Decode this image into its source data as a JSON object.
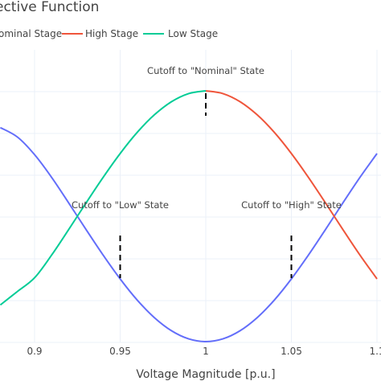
{
  "chart_data": {
    "type": "line",
    "title": "ective Function",
    "xlabel": "Voltage Magnitude [p.u.]",
    "xlim": [
      0.88,
      1.1
    ],
    "ylim": [
      0,
      1.02
    ],
    "x_ticks": [
      {
        "value": 0.9,
        "label": "0.9"
      },
      {
        "value": 0.95,
        "label": "0.95"
      },
      {
        "value": 1.0,
        "label": "1"
      },
      {
        "value": 1.05,
        "label": "1.05"
      },
      {
        "value": 1.1,
        "label": "1.1"
      }
    ],
    "legend_position": "top",
    "series": [
      {
        "name": "ominal Stage",
        "color": "#636efa",
        "x": [
          0.88,
          0.89,
          0.9,
          0.91,
          0.92,
          0.93,
          0.94,
          0.95,
          0.96,
          0.97,
          0.98,
          0.99,
          1.0,
          1.01,
          1.02,
          1.03,
          1.04,
          1.05,
          1.06,
          1.07,
          1.08,
          1.09,
          1.1
        ],
        "y": [
          0.8535,
          0.8156,
          0.7456,
          0.6545,
          0.5523,
          0.4477,
          0.3454,
          0.25,
          0.1654,
          0.0955,
          0.0434,
          0.011,
          0.0,
          0.011,
          0.0434,
          0.0955,
          0.1654,
          0.25,
          0.3454,
          0.4477,
          0.5523,
          0.6545,
          0.75
        ]
      },
      {
        "name": "High Stage",
        "color": "#ef553b",
        "x": [
          1.0,
          1.01,
          1.02,
          1.03,
          1.04,
          1.05,
          1.06,
          1.07,
          1.08,
          1.09,
          1.1
        ],
        "y": [
          1.0,
          0.989,
          0.9566,
          0.9045,
          0.8346,
          0.75,
          0.6545,
          0.5523,
          0.4477,
          0.3454,
          0.25
        ]
      },
      {
        "name": "Low Stage",
        "color": "#00cc96",
        "x": [
          0.88,
          0.89,
          0.9,
          0.91,
          0.92,
          0.93,
          0.94,
          0.95,
          0.96,
          0.97,
          0.98,
          0.99,
          1.0
        ],
        "y": [
          0.146,
          0.2,
          0.2544,
          0.3454,
          0.4477,
          0.5523,
          0.6546,
          0.75,
          0.8346,
          0.9045,
          0.9566,
          0.989,
          1.0
        ]
      }
    ],
    "annotations": [
      {
        "text": "Cutoff to \"Nominal\" State",
        "x": 1.0,
        "y_top": 1.0,
        "y_bottom": 0.9
      },
      {
        "text": "Cutoff to \"Low\" State",
        "x": 0.95,
        "y_top": 0.5,
        "y_bottom": 0.26
      },
      {
        "text": "Cutoff to \"High\" State",
        "x": 1.05,
        "y_top": 0.5,
        "y_bottom": 0.26
      }
    ]
  }
}
